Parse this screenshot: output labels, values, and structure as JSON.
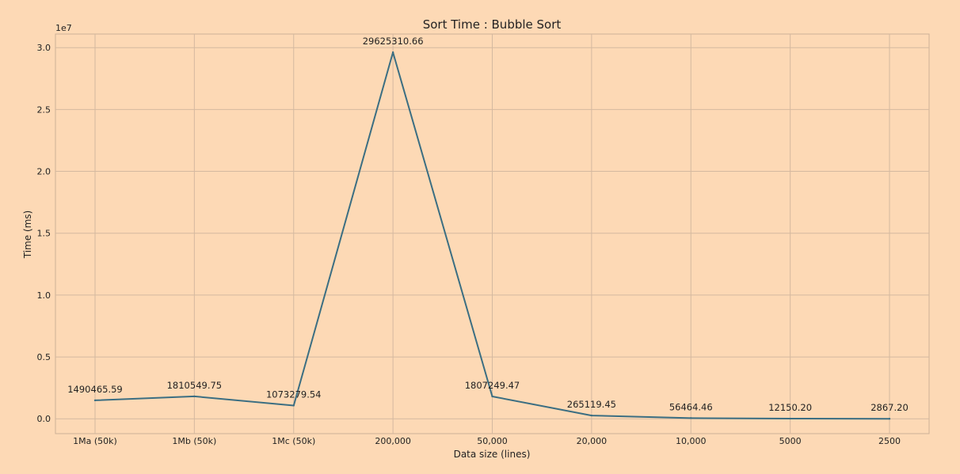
{
  "chart_data": {
    "type": "line",
    "title": "Sort Time : Bubble Sort",
    "xlabel": "Data size (lines)",
    "ylabel": "Time (ms)",
    "y_offset_label": "1e7",
    "categories": [
      "1Ma (50k)",
      "1Mb (50k)",
      "1Mc (50k)",
      "200,000",
      "50,000",
      "20,000",
      "10,000",
      "5000",
      "2500"
    ],
    "values": [
      1490465.59,
      1810549.75,
      1073279.54,
      29625310.66,
      1807249.47,
      265119.45,
      56464.46,
      12150.2,
      2867.2
    ],
    "data_labels": [
      "1490465.59",
      "1810549.75",
      "1073279.54",
      "29625310.66",
      "1807249.47",
      "265119.45",
      "56464.46",
      "12150.20",
      "2867.20"
    ],
    "yticks": [
      {
        "value": 0,
        "label": "0.0"
      },
      {
        "value": 5000000,
        "label": "0.5"
      },
      {
        "value": 10000000,
        "label": "1.0"
      },
      {
        "value": 15000000,
        "label": "1.5"
      },
      {
        "value": 20000000,
        "label": "2.0"
      },
      {
        "value": 25000000,
        "label": "2.5"
      },
      {
        "value": 30000000,
        "label": "3.0"
      }
    ],
    "ylim": [
      -1200000,
      31100000
    ],
    "grid": true,
    "colors": {
      "background": "#fdd9b5",
      "line": "#3b6e82",
      "grid": "#d4b9a0",
      "text": "#222222"
    }
  }
}
